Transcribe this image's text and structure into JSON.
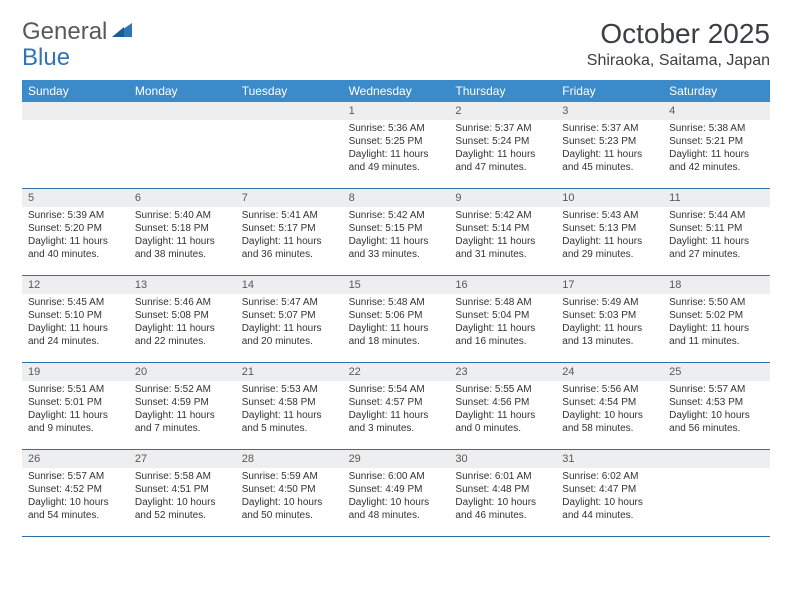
{
  "logo": {
    "text1": "General",
    "text2": "Blue"
  },
  "title": "October 2025",
  "location": "Shiraoka, Saitama, Japan",
  "colors": {
    "header_bg": "#3b8bca",
    "header_text": "#ffffff",
    "daynum_bg": "#eceeef",
    "border": "#2f6fa8",
    "body_text": "#333333",
    "logo_gray": "#555a60",
    "logo_blue": "#2f74b5"
  },
  "day_names": [
    "Sunday",
    "Monday",
    "Tuesday",
    "Wednesday",
    "Thursday",
    "Friday",
    "Saturday"
  ],
  "weeks": [
    [
      {
        "num": "",
        "sunrise": "",
        "sunset": "",
        "daylight": ""
      },
      {
        "num": "",
        "sunrise": "",
        "sunset": "",
        "daylight": ""
      },
      {
        "num": "",
        "sunrise": "",
        "sunset": "",
        "daylight": ""
      },
      {
        "num": "1",
        "sunrise": "Sunrise: 5:36 AM",
        "sunset": "Sunset: 5:25 PM",
        "daylight": "Daylight: 11 hours and 49 minutes."
      },
      {
        "num": "2",
        "sunrise": "Sunrise: 5:37 AM",
        "sunset": "Sunset: 5:24 PM",
        "daylight": "Daylight: 11 hours and 47 minutes."
      },
      {
        "num": "3",
        "sunrise": "Sunrise: 5:37 AM",
        "sunset": "Sunset: 5:23 PM",
        "daylight": "Daylight: 11 hours and 45 minutes."
      },
      {
        "num": "4",
        "sunrise": "Sunrise: 5:38 AM",
        "sunset": "Sunset: 5:21 PM",
        "daylight": "Daylight: 11 hours and 42 minutes."
      }
    ],
    [
      {
        "num": "5",
        "sunrise": "Sunrise: 5:39 AM",
        "sunset": "Sunset: 5:20 PM",
        "daylight": "Daylight: 11 hours and 40 minutes."
      },
      {
        "num": "6",
        "sunrise": "Sunrise: 5:40 AM",
        "sunset": "Sunset: 5:18 PM",
        "daylight": "Daylight: 11 hours and 38 minutes."
      },
      {
        "num": "7",
        "sunrise": "Sunrise: 5:41 AM",
        "sunset": "Sunset: 5:17 PM",
        "daylight": "Daylight: 11 hours and 36 minutes."
      },
      {
        "num": "8",
        "sunrise": "Sunrise: 5:42 AM",
        "sunset": "Sunset: 5:15 PM",
        "daylight": "Daylight: 11 hours and 33 minutes."
      },
      {
        "num": "9",
        "sunrise": "Sunrise: 5:42 AM",
        "sunset": "Sunset: 5:14 PM",
        "daylight": "Daylight: 11 hours and 31 minutes."
      },
      {
        "num": "10",
        "sunrise": "Sunrise: 5:43 AM",
        "sunset": "Sunset: 5:13 PM",
        "daylight": "Daylight: 11 hours and 29 minutes."
      },
      {
        "num": "11",
        "sunrise": "Sunrise: 5:44 AM",
        "sunset": "Sunset: 5:11 PM",
        "daylight": "Daylight: 11 hours and 27 minutes."
      }
    ],
    [
      {
        "num": "12",
        "sunrise": "Sunrise: 5:45 AM",
        "sunset": "Sunset: 5:10 PM",
        "daylight": "Daylight: 11 hours and 24 minutes."
      },
      {
        "num": "13",
        "sunrise": "Sunrise: 5:46 AM",
        "sunset": "Sunset: 5:08 PM",
        "daylight": "Daylight: 11 hours and 22 minutes."
      },
      {
        "num": "14",
        "sunrise": "Sunrise: 5:47 AM",
        "sunset": "Sunset: 5:07 PM",
        "daylight": "Daylight: 11 hours and 20 minutes."
      },
      {
        "num": "15",
        "sunrise": "Sunrise: 5:48 AM",
        "sunset": "Sunset: 5:06 PM",
        "daylight": "Daylight: 11 hours and 18 minutes."
      },
      {
        "num": "16",
        "sunrise": "Sunrise: 5:48 AM",
        "sunset": "Sunset: 5:04 PM",
        "daylight": "Daylight: 11 hours and 16 minutes."
      },
      {
        "num": "17",
        "sunrise": "Sunrise: 5:49 AM",
        "sunset": "Sunset: 5:03 PM",
        "daylight": "Daylight: 11 hours and 13 minutes."
      },
      {
        "num": "18",
        "sunrise": "Sunrise: 5:50 AM",
        "sunset": "Sunset: 5:02 PM",
        "daylight": "Daylight: 11 hours and 11 minutes."
      }
    ],
    [
      {
        "num": "19",
        "sunrise": "Sunrise: 5:51 AM",
        "sunset": "Sunset: 5:01 PM",
        "daylight": "Daylight: 11 hours and 9 minutes."
      },
      {
        "num": "20",
        "sunrise": "Sunrise: 5:52 AM",
        "sunset": "Sunset: 4:59 PM",
        "daylight": "Daylight: 11 hours and 7 minutes."
      },
      {
        "num": "21",
        "sunrise": "Sunrise: 5:53 AM",
        "sunset": "Sunset: 4:58 PM",
        "daylight": "Daylight: 11 hours and 5 minutes."
      },
      {
        "num": "22",
        "sunrise": "Sunrise: 5:54 AM",
        "sunset": "Sunset: 4:57 PM",
        "daylight": "Daylight: 11 hours and 3 minutes."
      },
      {
        "num": "23",
        "sunrise": "Sunrise: 5:55 AM",
        "sunset": "Sunset: 4:56 PM",
        "daylight": "Daylight: 11 hours and 0 minutes."
      },
      {
        "num": "24",
        "sunrise": "Sunrise: 5:56 AM",
        "sunset": "Sunset: 4:54 PM",
        "daylight": "Daylight: 10 hours and 58 minutes."
      },
      {
        "num": "25",
        "sunrise": "Sunrise: 5:57 AM",
        "sunset": "Sunset: 4:53 PM",
        "daylight": "Daylight: 10 hours and 56 minutes."
      }
    ],
    [
      {
        "num": "26",
        "sunrise": "Sunrise: 5:57 AM",
        "sunset": "Sunset: 4:52 PM",
        "daylight": "Daylight: 10 hours and 54 minutes."
      },
      {
        "num": "27",
        "sunrise": "Sunrise: 5:58 AM",
        "sunset": "Sunset: 4:51 PM",
        "daylight": "Daylight: 10 hours and 52 minutes."
      },
      {
        "num": "28",
        "sunrise": "Sunrise: 5:59 AM",
        "sunset": "Sunset: 4:50 PM",
        "daylight": "Daylight: 10 hours and 50 minutes."
      },
      {
        "num": "29",
        "sunrise": "Sunrise: 6:00 AM",
        "sunset": "Sunset: 4:49 PM",
        "daylight": "Daylight: 10 hours and 48 minutes."
      },
      {
        "num": "30",
        "sunrise": "Sunrise: 6:01 AM",
        "sunset": "Sunset: 4:48 PM",
        "daylight": "Daylight: 10 hours and 46 minutes."
      },
      {
        "num": "31",
        "sunrise": "Sunrise: 6:02 AM",
        "sunset": "Sunset: 4:47 PM",
        "daylight": "Daylight: 10 hours and 44 minutes."
      },
      {
        "num": "",
        "sunrise": "",
        "sunset": "",
        "daylight": ""
      }
    ]
  ]
}
